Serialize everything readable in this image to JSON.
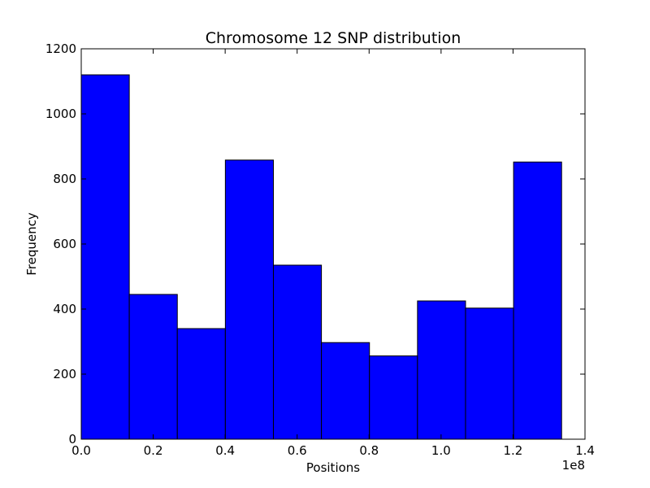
{
  "chart_data": {
    "type": "bar",
    "title": "Chromosome 12 SNP distribution",
    "xlabel": "Positions",
    "ylabel": "Frequency",
    "x_offset_label": "1e8",
    "xlim": [
      0.0,
      1.4
    ],
    "ylim": [
      0,
      1200
    ],
    "x_ticks": [
      "0.0",
      "0.2",
      "0.4",
      "0.6",
      "0.8",
      "1.0",
      "1.2",
      "1.4"
    ],
    "y_ticks": [
      "0",
      "200",
      "400",
      "600",
      "800",
      "1000",
      "1200"
    ],
    "bar_color": "#0000ff",
    "grid": false,
    "bin_edges": [
      0.0,
      0.1335,
      0.267,
      0.4005,
      0.534,
      0.6675,
      0.801,
      0.9345,
      1.068,
      1.2015,
      1.335
    ],
    "values": [
      1120,
      445,
      340,
      858,
      535,
      297,
      256,
      425,
      403,
      852
    ]
  }
}
